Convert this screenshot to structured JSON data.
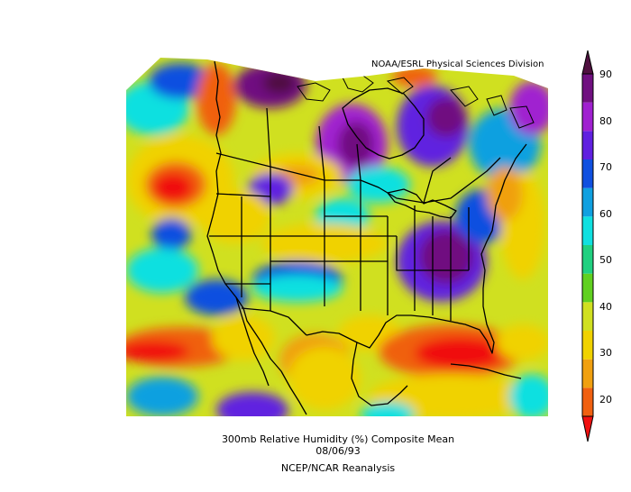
{
  "credit": "NOAA/ESRL Physical Sciences Division",
  "caption": {
    "title": "300mb Relative Humidity (%) Composite Mean",
    "date": "08/06/93",
    "source": "NCEP/NCAR Reanalysis"
  },
  "colorbar": {
    "ticks": [
      "90",
      "80",
      "70",
      "60",
      "50",
      "40",
      "30",
      "20"
    ],
    "colors": [
      "#f01010",
      "#f06010",
      "#f0a010",
      "#f0d200",
      "#d0e020",
      "#60d020",
      "#20d080",
      "#10e0e0",
      "#10a0e0",
      "#1050e0",
      "#6020e0",
      "#a020d0",
      "#701080",
      "#501040"
    ]
  },
  "map_colors": {
    "background_field": "#d0e020",
    "red": "#f01010",
    "orange": "#f06010",
    "yellow": "#f0d200",
    "cyan": "#10e0e0",
    "blue": "#1050e0",
    "purple": "#a020d0",
    "dark_purple": "#501040"
  }
}
